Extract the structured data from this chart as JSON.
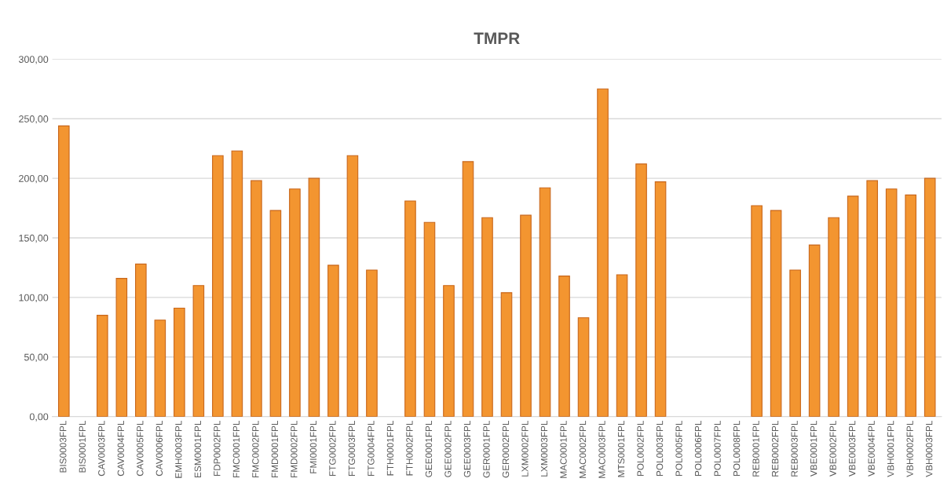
{
  "chart_data": {
    "type": "bar",
    "title": "TMPR",
    "categories": [
      "BIS0003FPL",
      "BIS0001FPL",
      "CAV0003FPL",
      "CAV0004FPL",
      "CAV0005FPL",
      "CAV0006FPL",
      "EMH0003FPL",
      "ESM0001FPL",
      "FDP0002FPL",
      "FMC0001FPL",
      "FMC0002FPL",
      "FMD0001FPL",
      "FMD0002FPL",
      "FMI0001FPL",
      "FTG0002FPL",
      "FTG0003FPL",
      "FTG0004FPL",
      "FTH0001FPL",
      "FTH0002FPL",
      "GEE0001FPL",
      "GEE0002FPL",
      "GEE0003FPL",
      "GER0001FPL",
      "GER0002FPL",
      "LXM0002FPL",
      "LXM0003FPL",
      "MAC0001FPL",
      "MAC0002FPL",
      "MAC0003FPL",
      "MTS0001FPL",
      "POL0002FPL",
      "POL0003FPL",
      "POL0005FPL",
      "POL0006FPL",
      "POL0007FPL",
      "POL0008FPL",
      "REB0001FPL",
      "REB0002FPL",
      "REB0003FPL",
      "VBE0001FPL",
      "VBE0002FPL",
      "VBE0003FPL",
      "VBE0004FPL",
      "VBH0001FPL",
      "VBH0002FPL",
      "VBH0003FPL"
    ],
    "values": [
      244,
      null,
      85,
      116,
      128,
      81,
      91,
      110,
      219,
      223,
      198,
      173,
      191,
      200,
      127,
      219,
      123,
      null,
      181,
      163,
      110,
      214,
      167,
      104,
      169,
      192,
      118,
      83,
      275,
      119,
      212,
      197,
      null,
      null,
      null,
      null,
      177,
      173,
      123,
      144,
      167,
      185,
      198,
      191,
      186,
      200
    ],
    "color": "#f39530",
    "ylim": [
      0,
      300
    ],
    "yticks": [
      {
        "value": 0,
        "label": "0,00"
      },
      {
        "value": 50,
        "label": "50,00"
      },
      {
        "value": 100,
        "label": "100,00"
      },
      {
        "value": 150,
        "label": "150,00"
      },
      {
        "value": 200,
        "label": "200,00"
      },
      {
        "value": 250,
        "label": "250,00"
      },
      {
        "value": 300,
        "label": "300,00"
      }
    ],
    "grid": "y"
  }
}
